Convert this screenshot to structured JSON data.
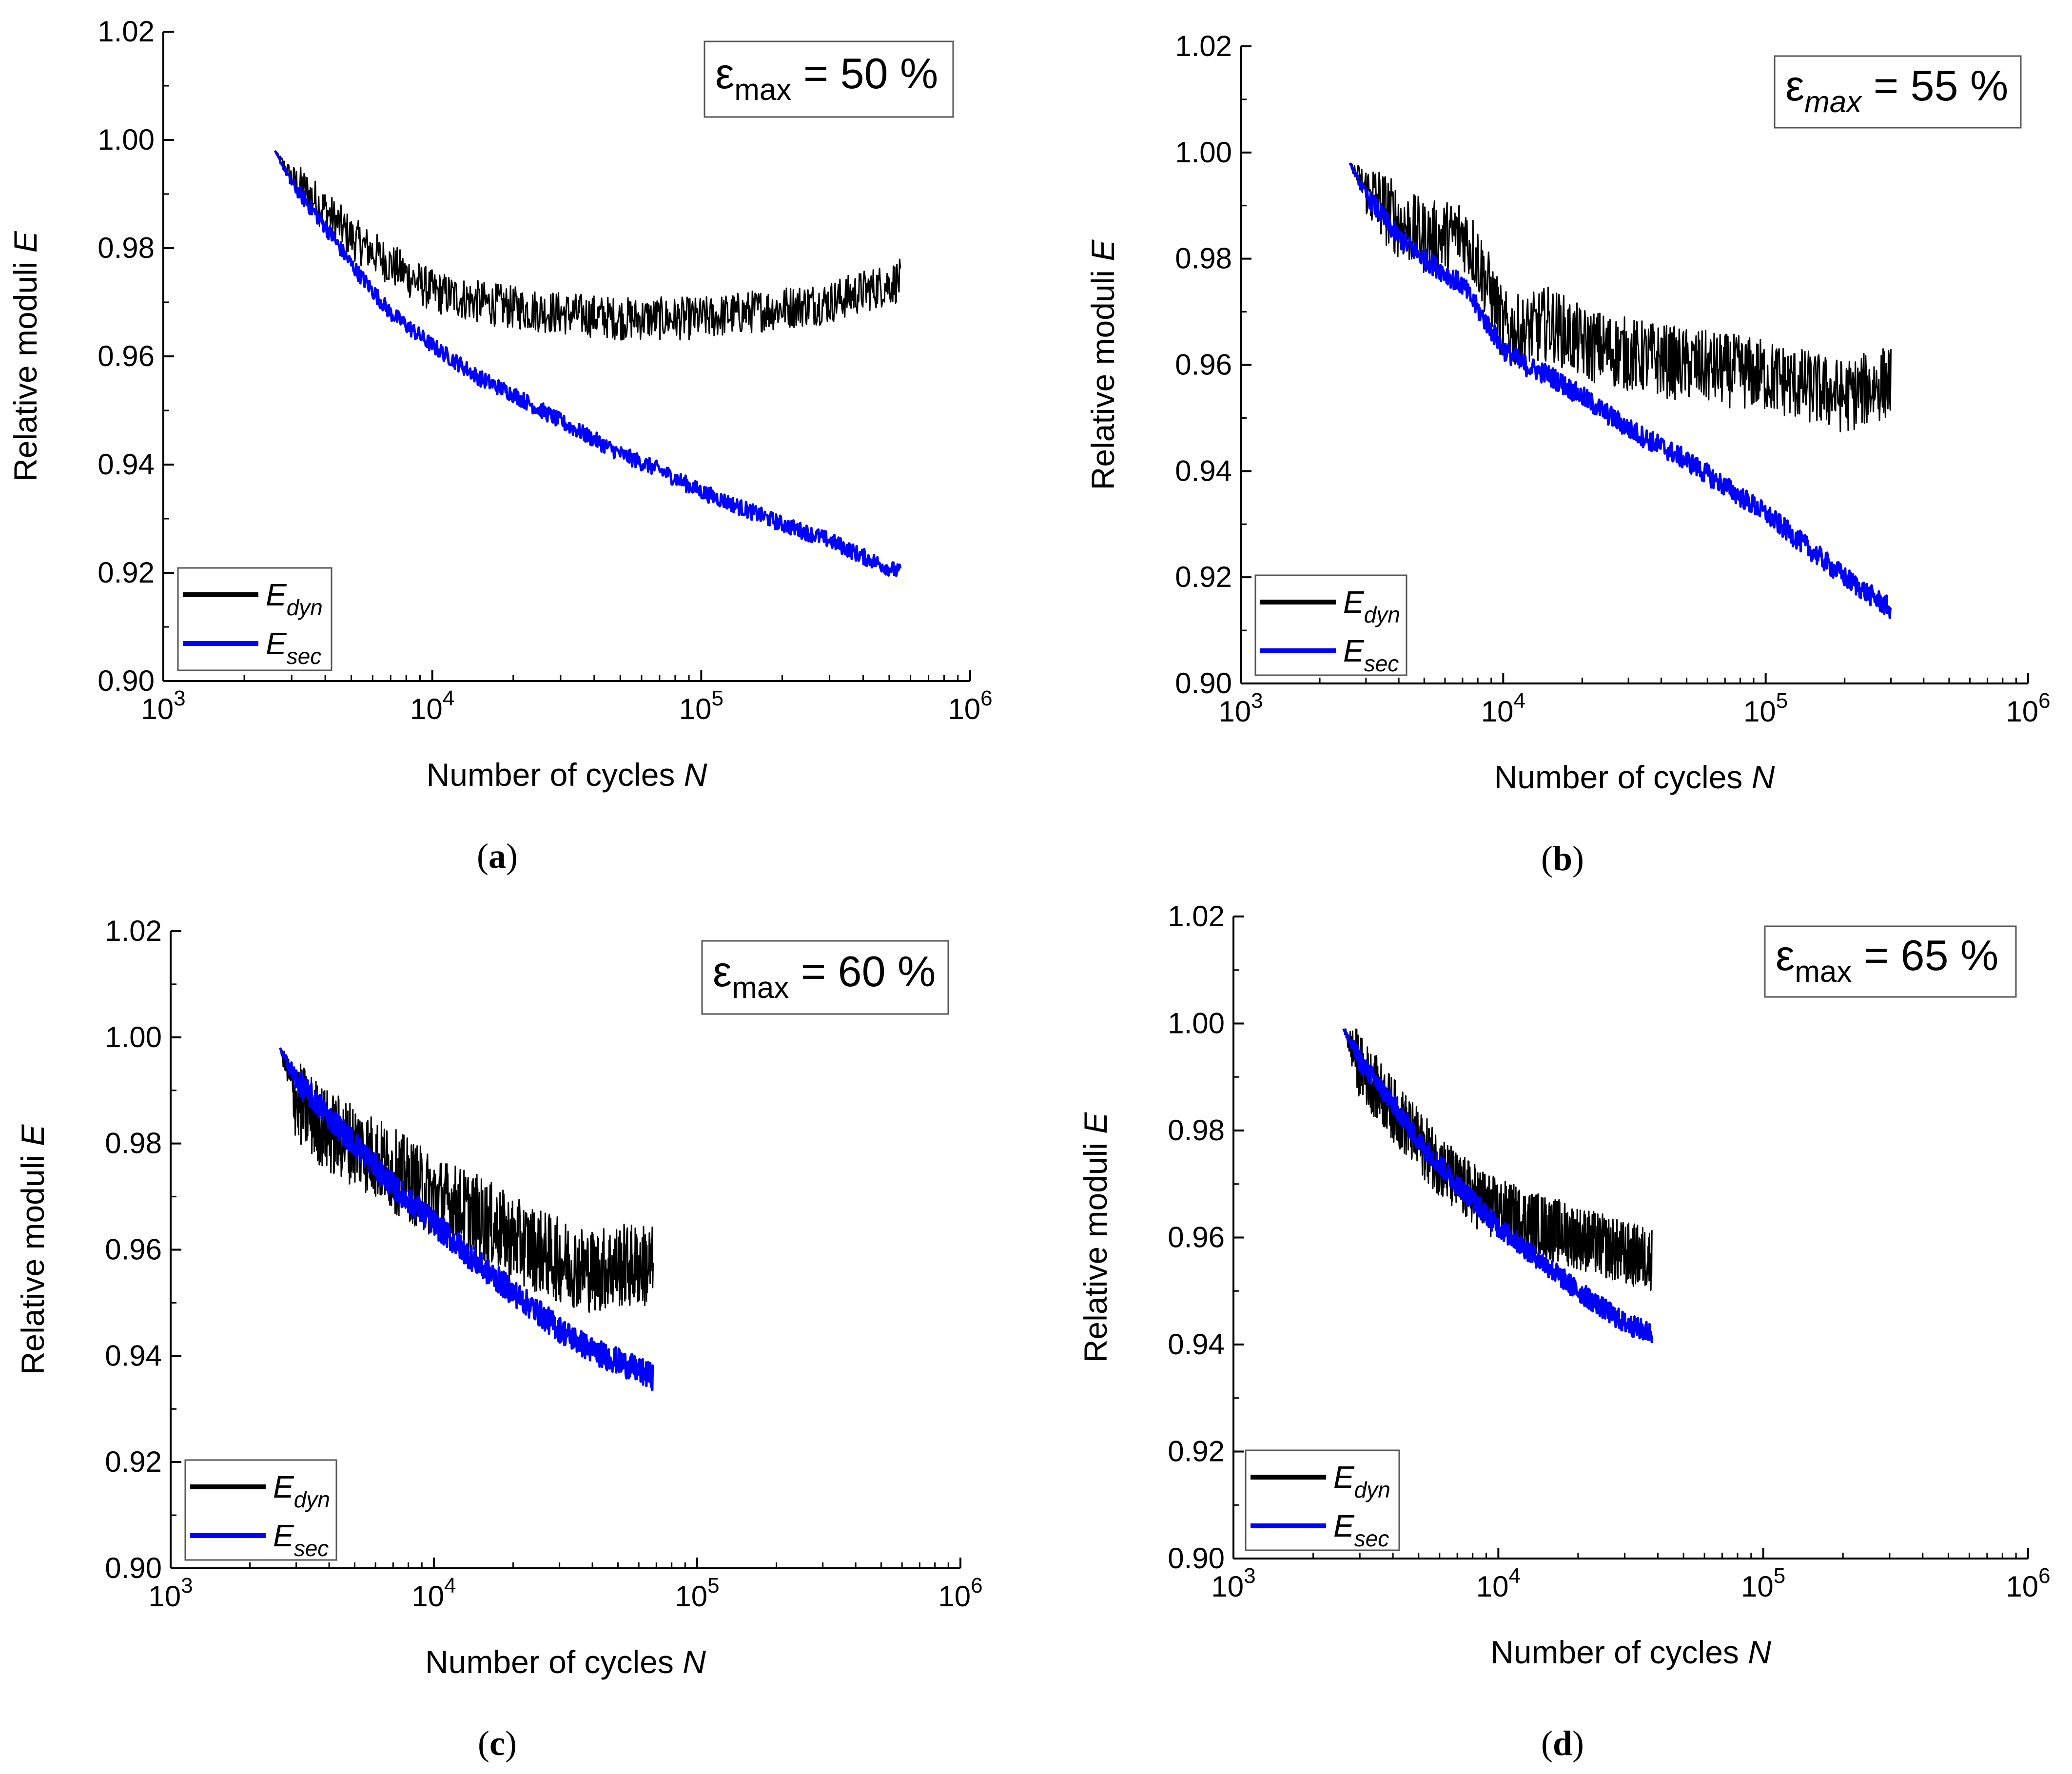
{
  "chart_data": [
    {
      "type": "line",
      "caption": "(a)",
      "annotation": {
        "symbol": "ε",
        "sub": "max",
        "text": " = 50 %"
      },
      "xlabel": "Number of cycles",
      "xlabel_var": "N",
      "ylabel": "Relative moduli",
      "ylabel_var": "E",
      "xscale": "log",
      "xlim": [
        1000,
        1000000
      ],
      "ylim": [
        0.9,
        1.02
      ],
      "xticks": [
        {
          "base": "10",
          "exp": "3"
        },
        {
          "base": "10",
          "exp": "4"
        },
        {
          "base": "10",
          "exp": "5"
        },
        {
          "base": "10",
          "exp": "6"
        }
      ],
      "yticks": [
        "0.90",
        "0.92",
        "0.94",
        "0.96",
        "0.98",
        "1.00",
        "1.02"
      ],
      "legend": {
        "position": "bottom-left"
      },
      "series": [
        {
          "name": "E",
          "sub": "dyn",
          "color": "#000000",
          "noise": 0.004,
          "x": [
            2600,
            3000,
            4000,
            5000,
            7000,
            10000,
            15000,
            20000,
            30000,
            50000,
            70000,
            100000,
            200000,
            300000,
            400000,
            550000
          ],
          "y": [
            0.998,
            0.993,
            0.987,
            0.982,
            0.977,
            0.972,
            0.97,
            0.969,
            0.968,
            0.967,
            0.967,
            0.967,
            0.969,
            0.97,
            0.972,
            0.974
          ]
        },
        {
          "name": "E",
          "sub": "sec",
          "color": "#0000ff",
          "noise": 0.0015,
          "x": [
            2600,
            3000,
            4000,
            5000,
            7000,
            10000,
            15000,
            20000,
            30000,
            50000,
            70000,
            100000,
            200000,
            300000,
            400000,
            550000
          ],
          "y": [
            0.998,
            0.992,
            0.984,
            0.977,
            0.968,
            0.962,
            0.956,
            0.953,
            0.948,
            0.942,
            0.939,
            0.935,
            0.929,
            0.926,
            0.923,
            0.92
          ]
        }
      ]
    },
    {
      "type": "line",
      "caption": "(b)",
      "annotation": {
        "symbol": "ε",
        "sub": "max",
        "text": " = 55 %",
        "italic_sub": true
      },
      "xlabel": "Number of cycles",
      "xlabel_var": "N",
      "ylabel": "Relative moduli",
      "ylabel_var": "E",
      "xscale": "log",
      "xlim": [
        1000,
        1000000
      ],
      "ylim": [
        0.9,
        1.02
      ],
      "xticks": [
        {
          "base": "10",
          "exp": "3"
        },
        {
          "base": "10",
          "exp": "4"
        },
        {
          "base": "10",
          "exp": "5"
        },
        {
          "base": "10",
          "exp": "6"
        }
      ],
      "yticks": [
        "0.90",
        "0.92",
        "0.94",
        "0.96",
        "0.98",
        "1.00",
        "1.02"
      ],
      "legend": {
        "position": "bottom-left"
      },
      "series": [
        {
          "name": "E",
          "sub": "dyn",
          "color": "#000000",
          "noise": 0.007,
          "x": [
            2600,
            3000,
            4000,
            5000,
            6000,
            7000,
            8000,
            10000,
            12000,
            15000,
            20000,
            30000,
            50000,
            100000,
            200000,
            300000
          ],
          "y": [
            0.998,
            0.993,
            0.987,
            0.984,
            0.984,
            0.985,
            0.98,
            0.967,
            0.966,
            0.968,
            0.964,
            0.962,
            0.96,
            0.958,
            0.954,
            0.957
          ]
        },
        {
          "name": "E",
          "sub": "sec",
          "color": "#0000ff",
          "noise": 0.002,
          "x": [
            2600,
            3000,
            4000,
            5000,
            7000,
            10000,
            12000,
            15000,
            20000,
            30000,
            50000,
            100000,
            200000,
            300000
          ],
          "y": [
            0.998,
            0.992,
            0.984,
            0.98,
            0.975,
            0.963,
            0.96,
            0.958,
            0.954,
            0.948,
            0.942,
            0.932,
            0.92,
            0.914
          ]
        }
      ]
    },
    {
      "type": "line",
      "caption": "(c)",
      "annotation": {
        "symbol": "ε",
        "sub": "max",
        "text": " = 60 %"
      },
      "xlabel": "Number of cycles",
      "xlabel_var": "N",
      "ylabel": "Relative moduli",
      "ylabel_var": "E",
      "xscale": "log",
      "xlim": [
        1000,
        1000000
      ],
      "ylim": [
        0.9,
        1.02
      ],
      "xticks": [
        {
          "base": "10",
          "exp": "3"
        },
        {
          "base": "10",
          "exp": "4"
        },
        {
          "base": "10",
          "exp": "5"
        },
        {
          "base": "10",
          "exp": "6"
        }
      ],
      "yticks": [
        "0.90",
        "0.92",
        "0.94",
        "0.96",
        "0.98",
        "1.00",
        "1.02"
      ],
      "legend": {
        "position": "bottom-left"
      },
      "series": [
        {
          "name": "E",
          "sub": "dyn",
          "color": "#000000",
          "noise": 0.008,
          "x": [
            2600,
            3000,
            4000,
            5000,
            7000,
            10000,
            15000,
            20000,
            30000,
            40000,
            50000,
            68000
          ],
          "y": [
            0.998,
            0.988,
            0.982,
            0.98,
            0.975,
            0.97,
            0.966,
            0.962,
            0.958,
            0.956,
            0.957,
            0.957
          ]
        },
        {
          "name": "E",
          "sub": "sec",
          "color": "#0000ff",
          "noise": 0.0025,
          "x": [
            2600,
            3000,
            4000,
            5000,
            7000,
            10000,
            15000,
            20000,
            30000,
            40000,
            50000,
            68000
          ],
          "y": [
            0.998,
            0.992,
            0.985,
            0.98,
            0.972,
            0.965,
            0.957,
            0.952,
            0.945,
            0.941,
            0.939,
            0.936
          ]
        }
      ]
    },
    {
      "type": "line",
      "caption": "(d)",
      "annotation": {
        "symbol": "ε",
        "sub": "max",
        "text": " = 65 %"
      },
      "xlabel": "Number of cycles",
      "xlabel_var": "N",
      "ylabel": "Relative moduli",
      "ylabel_var": "E",
      "xscale": "log",
      "xlim": [
        1000,
        1000000
      ],
      "ylim": [
        0.9,
        1.02
      ],
      "xticks": [
        {
          "base": "10",
          "exp": "3"
        },
        {
          "base": "10",
          "exp": "4"
        },
        {
          "base": "10",
          "exp": "5"
        },
        {
          "base": "10",
          "exp": "6"
        }
      ],
      "yticks": [
        "0.90",
        "0.92",
        "0.94",
        "0.96",
        "0.98",
        "1.00",
        "1.02"
      ],
      "legend": {
        "position": "bottom-left"
      },
      "series": [
        {
          "name": "E",
          "sub": "dyn",
          "color": "#000000",
          "noise": 0.006,
          "x": [
            2600,
            3000,
            4000,
            5000,
            7000,
            10000,
            15000,
            20000,
            30000,
            38000
          ],
          "y": [
            0.999,
            0.992,
            0.984,
            0.978,
            0.97,
            0.965,
            0.962,
            0.96,
            0.957,
            0.956
          ]
        },
        {
          "name": "E",
          "sub": "sec",
          "color": "#0000ff",
          "noise": 0.002,
          "x": [
            2600,
            3000,
            4000,
            5000,
            7000,
            10000,
            15000,
            20000,
            30000,
            38000
          ],
          "y": [
            0.999,
            0.993,
            0.985,
            0.978,
            0.97,
            0.962,
            0.955,
            0.95,
            0.944,
            0.942
          ]
        }
      ]
    }
  ]
}
